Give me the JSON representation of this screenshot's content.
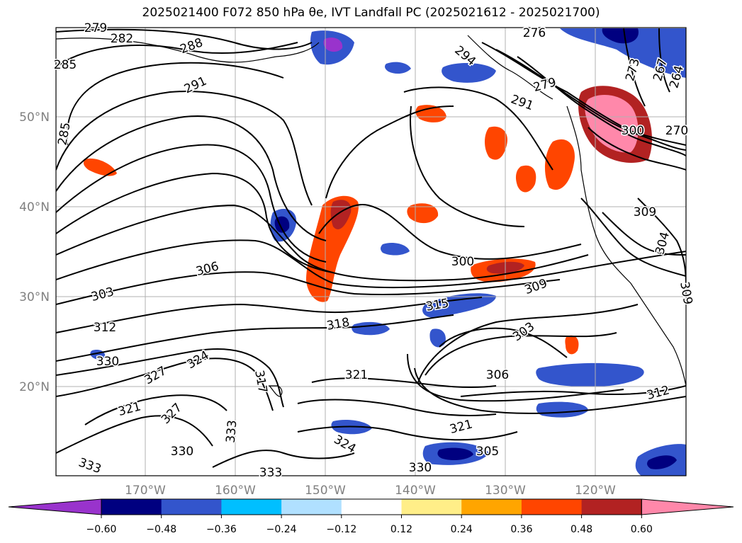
{
  "title": "2025021400 F072 850 hPa θe, IVT Landfall PC (2025021612 - 2025021700)",
  "map": {
    "lat_labels": [
      "50°N",
      "40°N",
      "30°N",
      "20°N"
    ],
    "lon_labels": [
      "170°W",
      "160°W",
      "150°W",
      "140°W",
      "130°W",
      "120°W"
    ],
    "contour_labels": [
      "279",
      "282",
      "285",
      "288",
      "291",
      "285",
      "294",
      "276",
      "273",
      "267",
      "264",
      "279",
      "291",
      "270",
      "309",
      "300",
      "304",
      "306",
      "300",
      "303",
      "309",
      "312",
      "315",
      "318",
      "303",
      "306",
      "330",
      "327",
      "324",
      "317",
      "321",
      "327",
      "321",
      "312",
      "330",
      "321",
      "324",
      "333",
      "333",
      "333",
      "330",
      "305",
      "309"
    ]
  },
  "colorbar": {
    "ticks": [
      "−0.60",
      "−0.48",
      "−0.36",
      "−0.24",
      "−0.12",
      "0.12",
      "0.24",
      "0.36",
      "0.48",
      "0.60"
    ],
    "colors": [
      "#9933cc",
      "#000080",
      "#3355cc",
      "#00bfff",
      "#b0e0ff",
      "#ffffff",
      "#ffee88",
      "#ffa500",
      "#ff4500",
      "#b22222",
      "#ff88aa"
    ]
  }
}
